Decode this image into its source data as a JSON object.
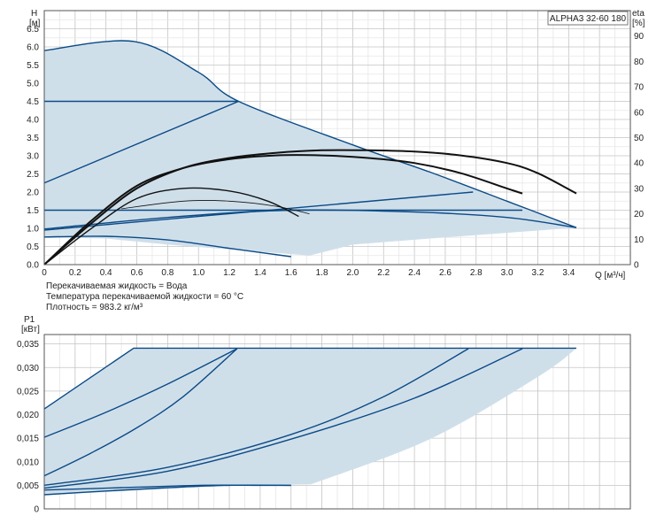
{
  "chart_data": [
    {
      "type": "line",
      "title": "ALPHA3 32-60 180",
      "ylabel_line1": "H",
      "ylabel_line2": "[м]",
      "y2label_line1": "eta",
      "y2label_line2": "[%]",
      "xlabel": "Q [м³/ч]",
      "xlim": [
        0,
        3.8
      ],
      "ylim": [
        0,
        7
      ],
      "y2lim": [
        0,
        100
      ],
      "x_ticks": [
        "0",
        "0.2",
        "0.4",
        "0.6",
        "0.8",
        "1.0",
        "1.2",
        "1.4",
        "1.6",
        "1.8",
        "2.0",
        "2.2",
        "2.4",
        "2.6",
        "2.8",
        "3.0",
        "3.2",
        "3.4"
      ],
      "x_tick_values": [
        0,
        0.2,
        0.4,
        0.6,
        0.8,
        1.0,
        1.2,
        1.4,
        1.6,
        1.8,
        2.0,
        2.2,
        2.4,
        2.6,
        2.8,
        3.0,
        3.2,
        3.4
      ],
      "y_ticks": [
        "0.0",
        "0.5",
        "1.0",
        "1.5",
        "2.0",
        "2.5",
        "3.0",
        "3.5",
        "4.0",
        "4.5",
        "5.0",
        "5.5",
        "6.0",
        "6.5"
      ],
      "y_tick_values": [
        0,
        0.5,
        1.0,
        1.5,
        2.0,
        2.5,
        3.0,
        3.5,
        4.0,
        4.5,
        5.0,
        5.5,
        6.0,
        6.5
      ],
      "y2_ticks": [
        "0",
        "10",
        "20",
        "30",
        "40",
        "50",
        "60",
        "70",
        "80",
        "90"
      ],
      "y2_tick_values": [
        0,
        10,
        20,
        30,
        40,
        50,
        60,
        70,
        80,
        90
      ],
      "grid": true,
      "legend_position": "top-right",
      "fill_color": "#cfdfea",
      "curve_color": "#0b4a86",
      "eff_color": "#111111",
      "envelope": {
        "x": [
          0,
          0.58,
          1.0,
          1.26,
          2.0,
          2.5,
          3.0,
          3.45,
          2.5,
          2.0,
          1.72,
          0.8,
          0.4,
          0
        ],
        "y": [
          5.9,
          6.15,
          5.3,
          4.5,
          3.3,
          2.55,
          1.75,
          1.02,
          0.72,
          0.55,
          0.25,
          0.55,
          0.72,
          0.75
        ]
      },
      "series": [
        {
          "x": [
            0,
            0.58,
            1.0,
            1.26,
            2.0,
            2.5,
            3.0,
            3.45
          ],
          "y": [
            5.9,
            6.15,
            5.3,
            4.5,
            3.3,
            2.55,
            1.75,
            1.02
          ]
        },
        {
          "x": [
            0,
            1.26
          ],
          "y": [
            4.5,
            4.5
          ]
        },
        {
          "x": [
            0,
            1.26
          ],
          "y": [
            2.25,
            4.5
          ]
        },
        {
          "x": [
            0,
            3.1
          ],
          "y": [
            1.5,
            1.5
          ]
        },
        {
          "x": [
            0,
            2.78
          ],
          "y": [
            0.95,
            2.0
          ]
        },
        {
          "x": [
            0,
            0.8,
            1.6,
            2.4,
            3.0,
            3.45
          ],
          "y": [
            0.98,
            1.3,
            1.5,
            1.45,
            1.3,
            1.02
          ]
        },
        {
          "x": [
            0,
            0.4,
            0.8,
            1.2,
            1.6
          ],
          "y": [
            0.76,
            0.78,
            0.68,
            0.45,
            0.22
          ]
        }
      ],
      "efficiency": [
        {
          "x": [
            0,
            0.3,
            0.6,
            0.9,
            1.2,
            1.5,
            1.8,
            2.1,
            2.4,
            2.7,
            3.0,
            3.2,
            3.45
          ],
          "y": [
            0,
            16,
            30,
            38,
            42,
            44,
            45,
            45,
            44.5,
            43,
            40,
            36,
            28
          ]
        },
        {
          "x": [
            0,
            0.3,
            0.6,
            0.9,
            1.2,
            1.5,
            1.8,
            2.1,
            2.4,
            2.7,
            3.0,
            3.1
          ],
          "y": [
            0,
            17,
            31,
            38,
            41.5,
            43,
            43,
            42,
            40,
            36,
            30,
            28
          ]
        },
        {
          "x": [
            0,
            0.3,
            0.6,
            0.9,
            1.2,
            1.45,
            1.65
          ],
          "y": [
            0,
            14,
            26,
            30,
            29,
            25,
            19
          ]
        },
        {
          "x": [
            0.5,
            0.9,
            1.2,
            1.5,
            1.72
          ],
          "y": [
            22,
            25,
            25,
            23,
            20
          ]
        }
      ],
      "annotations": [
        "Перекачиваемая жидкость = Вода",
        "Температура перекачиваемой жидкости = 60 °C",
        "Плотность = 983.2 кг/м³"
      ]
    },
    {
      "type": "line",
      "ylabel_line1": "P1",
      "ylabel_line2": "[кВт]",
      "xlim": [
        0,
        3.8
      ],
      "ylim": [
        0,
        0.037
      ],
      "y_ticks": [
        "0",
        "0,005",
        "0,010",
        "0,015",
        "0,020",
        "0,025",
        "0,030",
        "0,035"
      ],
      "y_tick_values": [
        0,
        0.005,
        0.01,
        0.015,
        0.02,
        0.025,
        0.03,
        0.035
      ],
      "grid": true,
      "envelope": {
        "x": [
          0,
          0.58,
          3.45,
          3.2,
          2.5,
          1.73,
          1.2,
          0
        ],
        "y": [
          0.0212,
          0.0341,
          0.0341,
          0.028,
          0.0148,
          0.0052,
          0.0049,
          0.0029
        ]
      },
      "series": [
        {
          "x": [
            0,
            0.58,
            3.45
          ],
          "y": [
            0.0212,
            0.0341,
            0.0341
          ]
        },
        {
          "x": [
            0,
            0.4,
            0.8,
            1.25
          ],
          "y": [
            0.0152,
            0.0205,
            0.0265,
            0.034
          ]
        },
        {
          "x": [
            0,
            0.3,
            0.6,
            0.9,
            1.25
          ],
          "y": [
            0.007,
            0.0118,
            0.0172,
            0.0238,
            0.034
          ]
        },
        {
          "x": [
            0,
            0.8,
            1.6,
            2.2,
            2.75
          ],
          "y": [
            0.005,
            0.0088,
            0.0158,
            0.0238,
            0.034
          ]
        },
        {
          "x": [
            0,
            0.8,
            1.6,
            2.4,
            3.1
          ],
          "y": [
            0.0044,
            0.008,
            0.0148,
            0.0235,
            0.034
          ]
        },
        {
          "x": [
            0,
            0.5,
            1.0,
            1.4,
            1.6
          ],
          "y": [
            0.004,
            0.0045,
            0.005,
            0.005,
            0.005
          ]
        },
        {
          "x": [
            0,
            0.4,
            0.8,
            1.2,
            1.6
          ],
          "y": [
            0.003,
            0.0038,
            0.0045,
            0.005,
            0.005
          ]
        }
      ]
    }
  ]
}
